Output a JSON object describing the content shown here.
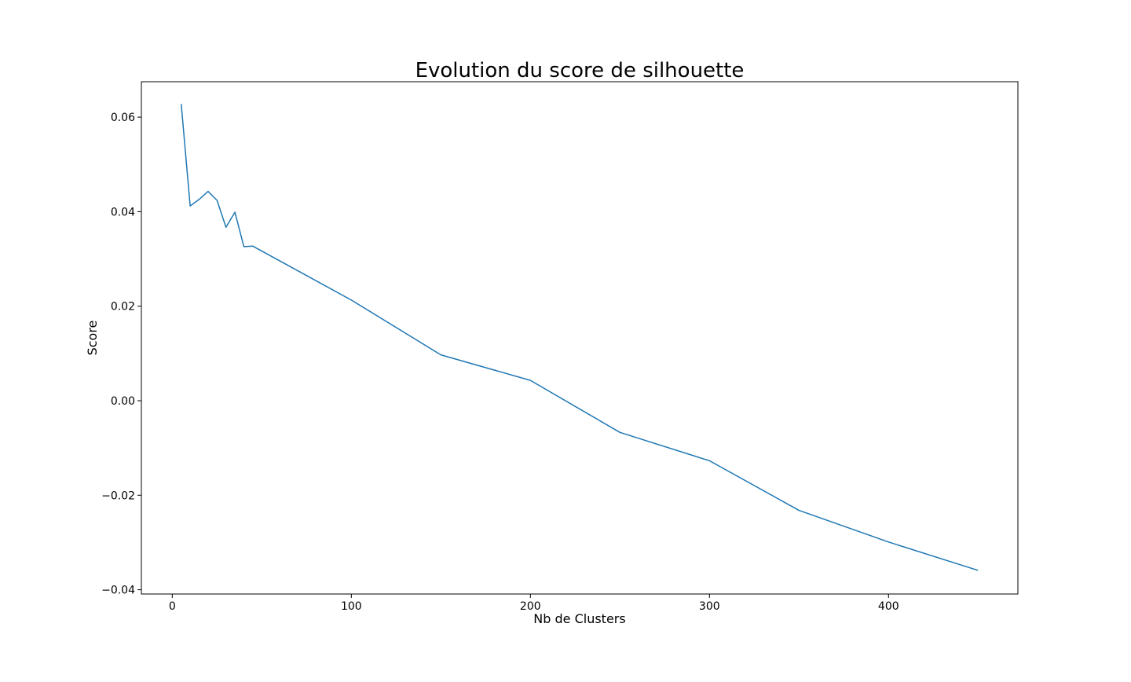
{
  "chart_data": {
    "type": "line",
    "title": "Evolution du score de silhouette",
    "xlabel": "Nb de Clusters",
    "ylabel": "Score",
    "xlim": [
      -17.25,
      472.25
    ],
    "ylim": [
      -0.0409,
      0.0675
    ],
    "xticks": [
      {
        "value": 0,
        "label": "0"
      },
      {
        "value": 100,
        "label": "100"
      },
      {
        "value": 200,
        "label": "200"
      },
      {
        "value": 300,
        "label": "300"
      },
      {
        "value": 400,
        "label": "400"
      }
    ],
    "yticks": [
      {
        "value": -0.04,
        "label": "−0.04"
      },
      {
        "value": -0.02,
        "label": "−0.02"
      },
      {
        "value": 0.0,
        "label": "0.00"
      },
      {
        "value": 0.02,
        "label": "0.02"
      },
      {
        "value": 0.04,
        "label": "0.04"
      },
      {
        "value": 0.06,
        "label": "0.06"
      }
    ],
    "grid": false,
    "legend": "none",
    "series": [
      {
        "color": "#1f77b4",
        "x": [
          5,
          10,
          15,
          20,
          25,
          30,
          35,
          40,
          45,
          100,
          150,
          200,
          250,
          300,
          350,
          400,
          450
        ],
        "y": [
          0.0628,
          0.0412,
          0.0426,
          0.0443,
          0.0424,
          0.0367,
          0.0399,
          0.0326,
          0.0327,
          0.0213,
          0.0097,
          0.0043,
          -0.0067,
          -0.0127,
          -0.0232,
          -0.0299,
          -0.0359
        ]
      }
    ]
  }
}
